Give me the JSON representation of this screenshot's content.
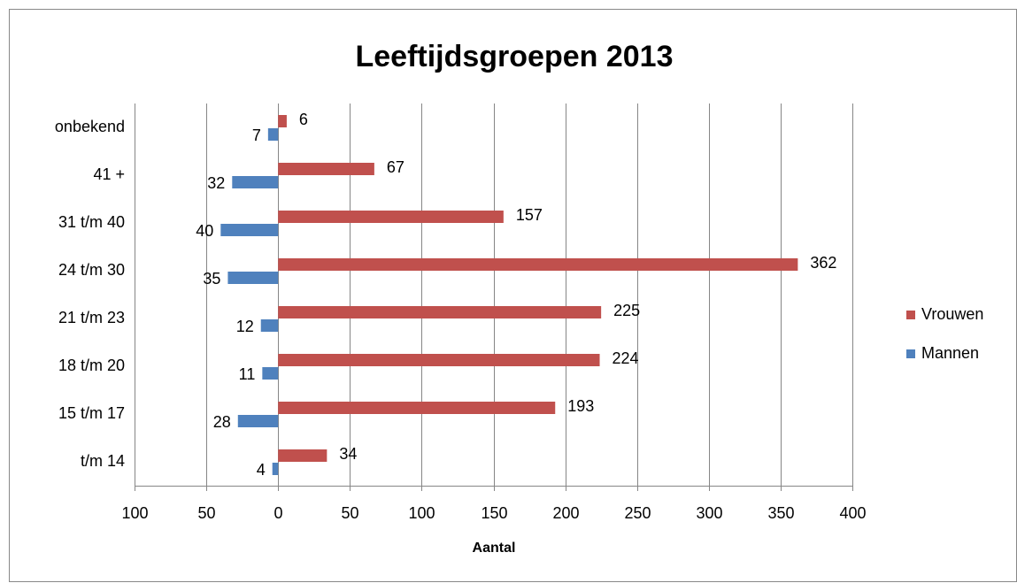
{
  "chart_data": {
    "type": "bar",
    "orientation": "horizontal",
    "title": "Leeftijdsgroepen 2013",
    "x_label": "Aantal",
    "categories": [
      "t/m 14",
      "15 t/m 17",
      "18 t/m 20",
      "21 t/m 23",
      "24 t/m 30",
      "31 t/m 40",
      "41 +",
      "onbekend"
    ],
    "series": [
      {
        "name": "Mannen",
        "color": "#4f81bd",
        "values": [
          -4,
          -28,
          -11,
          -12,
          -35,
          -40,
          -32,
          -7
        ],
        "value_labels": [
          "4",
          "28",
          "11",
          "12",
          "35",
          "40",
          "32",
          "7"
        ]
      },
      {
        "name": "Vrouwen",
        "color": "#c0504d",
        "values": [
          34,
          193,
          224,
          225,
          362,
          157,
          67,
          6
        ]
      }
    ],
    "xlim": [
      -100,
      400
    ],
    "xticks": [
      {
        "value": -100,
        "label": "100"
      },
      {
        "value": -50,
        "label": "50"
      },
      0,
      50,
      100,
      150,
      200,
      250,
      300,
      350,
      400
    ],
    "grid": true,
    "legend": "right"
  }
}
